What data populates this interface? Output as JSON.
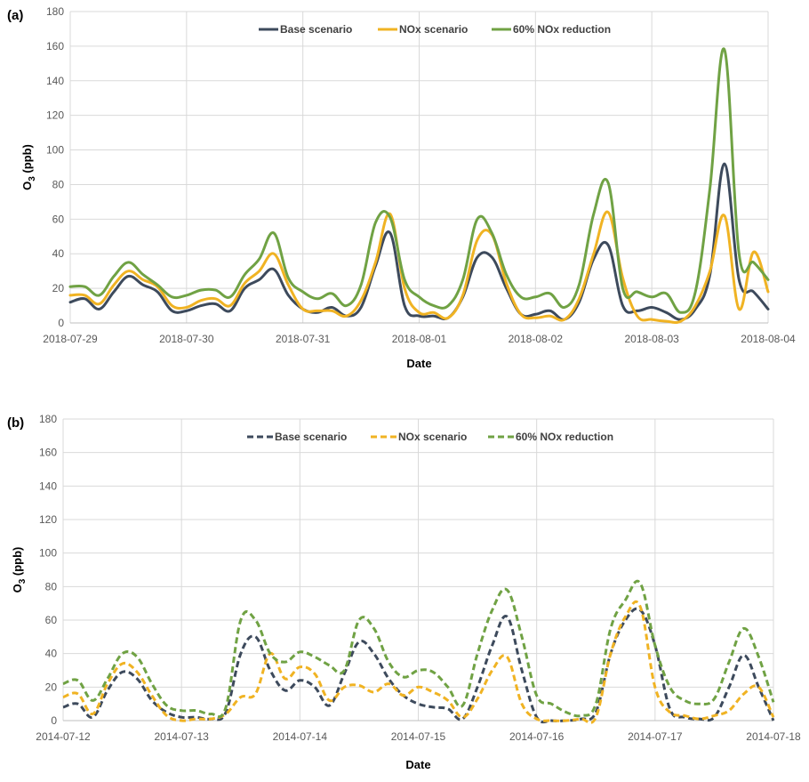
{
  "chart_data": [
    {
      "panel_label": "(a)",
      "type": "line",
      "xlabel": "Date",
      "ylabel": "O3 (ppb)",
      "ylabel_main": "O",
      "ylabel_sub": "3",
      "ylabel_rest": " (ppb)",
      "ylim": [
        0,
        180
      ],
      "yticks": [
        0,
        20,
        40,
        60,
        80,
        100,
        120,
        140,
        160,
        180
      ],
      "xlim": [
        "2018-07-29",
        "2018-08-04"
      ],
      "xticks": [
        "2018-07-29",
        "2018-07-30",
        "2018-07-31",
        "2018-08-01",
        "2018-08-02",
        "2018-08-03",
        "2018-08-04"
      ],
      "grid": true,
      "legend_position": "top-center",
      "x": [
        "2018-07-29 00:00",
        "2018-07-29 03:00",
        "2018-07-29 06:00",
        "2018-07-29 09:00",
        "2018-07-29 12:00",
        "2018-07-29 15:00",
        "2018-07-29 18:00",
        "2018-07-29 21:00",
        "2018-07-30 00:00",
        "2018-07-30 03:00",
        "2018-07-30 06:00",
        "2018-07-30 09:00",
        "2018-07-30 12:00",
        "2018-07-30 15:00",
        "2018-07-30 18:00",
        "2018-07-30 21:00",
        "2018-07-31 00:00",
        "2018-07-31 03:00",
        "2018-07-31 06:00",
        "2018-07-31 09:00",
        "2018-07-31 12:00",
        "2018-07-31 15:00",
        "2018-07-31 18:00",
        "2018-07-31 21:00",
        "2018-08-01 00:00",
        "2018-08-01 03:00",
        "2018-08-01 06:00",
        "2018-08-01 09:00",
        "2018-08-01 12:00",
        "2018-08-01 15:00",
        "2018-08-01 18:00",
        "2018-08-01 21:00",
        "2018-08-02 00:00",
        "2018-08-02 03:00",
        "2018-08-02 06:00",
        "2018-08-02 09:00",
        "2018-08-02 12:00",
        "2018-08-02 15:00",
        "2018-08-02 18:00",
        "2018-08-02 21:00",
        "2018-08-03 00:00",
        "2018-08-03 03:00",
        "2018-08-03 06:00",
        "2018-08-03 09:00",
        "2018-08-03 12:00",
        "2018-08-03 15:00",
        "2018-08-03 18:00",
        "2018-08-03 21:00",
        "2018-08-04 00:00"
      ],
      "series": [
        {
          "name": "Base scenario",
          "color": "#3d4a5c",
          "dash": false,
          "values": [
            12,
            14,
            8,
            18,
            27,
            22,
            18,
            7,
            7,
            10,
            11,
            7,
            20,
            25,
            31,
            16,
            8,
            6,
            9,
            4,
            9,
            33,
            52,
            10,
            4,
            4,
            3,
            15,
            38,
            38,
            20,
            5,
            5,
            7,
            2,
            12,
            37,
            45,
            10,
            7,
            9,
            6,
            2,
            8,
            28,
            92,
            25,
            18,
            8
          ]
        },
        {
          "name": "NOx scenario",
          "color": "#f0b323",
          "dash": false,
          "values": [
            16,
            16,
            11,
            22,
            30,
            25,
            21,
            10,
            9,
            13,
            14,
            10,
            23,
            30,
            40,
            22,
            8,
            7,
            7,
            4,
            13,
            35,
            63,
            20,
            6,
            6,
            3,
            16,
            48,
            51,
            23,
            5,
            3,
            4,
            2,
            14,
            40,
            64,
            26,
            4,
            2,
            1,
            1,
            10,
            30,
            62,
            8,
            41,
            18
          ]
        },
        {
          "name": "60% NOx reduction",
          "color": "#70a244",
          "dash": false,
          "values": [
            21,
            21,
            16,
            27,
            35,
            28,
            22,
            15,
            16,
            19,
            19,
            15,
            28,
            37,
            52,
            26,
            18,
            14,
            17,
            10,
            22,
            58,
            61,
            25,
            15,
            10,
            10,
            25,
            60,
            52,
            28,
            15,
            15,
            17,
            9,
            22,
            63,
            81,
            20,
            18,
            15,
            17,
            6,
            18,
            78,
            158,
            40,
            35,
            25
          ]
        }
      ]
    },
    {
      "panel_label": "(b)",
      "type": "line",
      "xlabel": "Date",
      "ylabel": "O3 (ppb)",
      "ylabel_main": "O",
      "ylabel_sub": "3",
      "ylabel_rest": " (ppb)",
      "ylim": [
        0,
        180
      ],
      "yticks": [
        0,
        20,
        40,
        60,
        80,
        100,
        120,
        140,
        160,
        180
      ],
      "xlim": [
        "2014-07-12",
        "2014-07-18"
      ],
      "xticks": [
        "2014-07-12",
        "2014-07-13",
        "2014-07-14",
        "2014-07-15",
        "2014-07-16",
        "2014-07-17",
        "2014-07-18"
      ],
      "grid": true,
      "legend_position": "top-center",
      "x": [
        "2014-07-12 00:00",
        "2014-07-12 03:00",
        "2014-07-12 06:00",
        "2014-07-12 09:00",
        "2014-07-12 12:00",
        "2014-07-12 15:00",
        "2014-07-12 18:00",
        "2014-07-12 21:00",
        "2014-07-13 00:00",
        "2014-07-13 03:00",
        "2014-07-13 06:00",
        "2014-07-13 09:00",
        "2014-07-13 12:00",
        "2014-07-13 15:00",
        "2014-07-13 18:00",
        "2014-07-13 21:00",
        "2014-07-14 00:00",
        "2014-07-14 03:00",
        "2014-07-14 06:00",
        "2014-07-14 09:00",
        "2014-07-14 12:00",
        "2014-07-14 15:00",
        "2014-07-14 18:00",
        "2014-07-14 21:00",
        "2014-07-15 00:00",
        "2014-07-15 03:00",
        "2014-07-15 06:00",
        "2014-07-15 09:00",
        "2014-07-15 12:00",
        "2014-07-15 15:00",
        "2014-07-15 18:00",
        "2014-07-15 21:00",
        "2014-07-16 00:00",
        "2014-07-16 03:00",
        "2014-07-16 06:00",
        "2014-07-16 09:00",
        "2014-07-16 12:00",
        "2014-07-16 15:00",
        "2014-07-16 18:00",
        "2014-07-16 21:00",
        "2014-07-17 00:00",
        "2014-07-17 03:00",
        "2014-07-17 06:00",
        "2014-07-17 09:00",
        "2014-07-17 12:00",
        "2014-07-17 15:00",
        "2014-07-17 18:00",
        "2014-07-17 21:00",
        "2014-07-18 00:00"
      ],
      "series": [
        {
          "name": "Base scenario",
          "color": "#3d4a5c",
          "dash": true,
          "values": [
            8,
            10,
            2,
            18,
            29,
            25,
            12,
            5,
            2,
            2,
            1,
            5,
            40,
            50,
            30,
            18,
            24,
            20,
            9,
            28,
            47,
            40,
            25,
            15,
            10,
            8,
            7,
            1,
            20,
            45,
            62,
            30,
            2,
            0,
            0,
            1,
            5,
            40,
            60,
            66,
            45,
            7,
            2,
            1,
            2,
            20,
            39,
            20,
            0
          ]
        },
        {
          "name": "NOx scenario",
          "color": "#f0b323",
          "dash": true,
          "values": [
            14,
            16,
            4,
            22,
            34,
            29,
            15,
            3,
            0,
            1,
            1,
            4,
            14,
            16,
            40,
            25,
            32,
            28,
            12,
            20,
            21,
            17,
            22,
            15,
            20,
            17,
            12,
            2,
            13,
            30,
            38,
            10,
            1,
            0,
            0,
            1,
            2,
            40,
            62,
            68,
            20,
            5,
            3,
            1,
            3,
            6,
            16,
            20,
            2
          ]
        },
        {
          "name": "60% NOx reduction",
          "color": "#70a244",
          "dash": true,
          "values": [
            22,
            24,
            12,
            25,
            40,
            38,
            22,
            9,
            6,
            6,
            4,
            8,
            60,
            60,
            40,
            35,
            41,
            38,
            33,
            30,
            60,
            55,
            35,
            26,
            30,
            29,
            20,
            9,
            40,
            66,
            78,
            50,
            15,
            10,
            5,
            3,
            10,
            55,
            72,
            82,
            45,
            20,
            12,
            10,
            13,
            35,
            55,
            38,
            11
          ]
        }
      ]
    }
  ]
}
